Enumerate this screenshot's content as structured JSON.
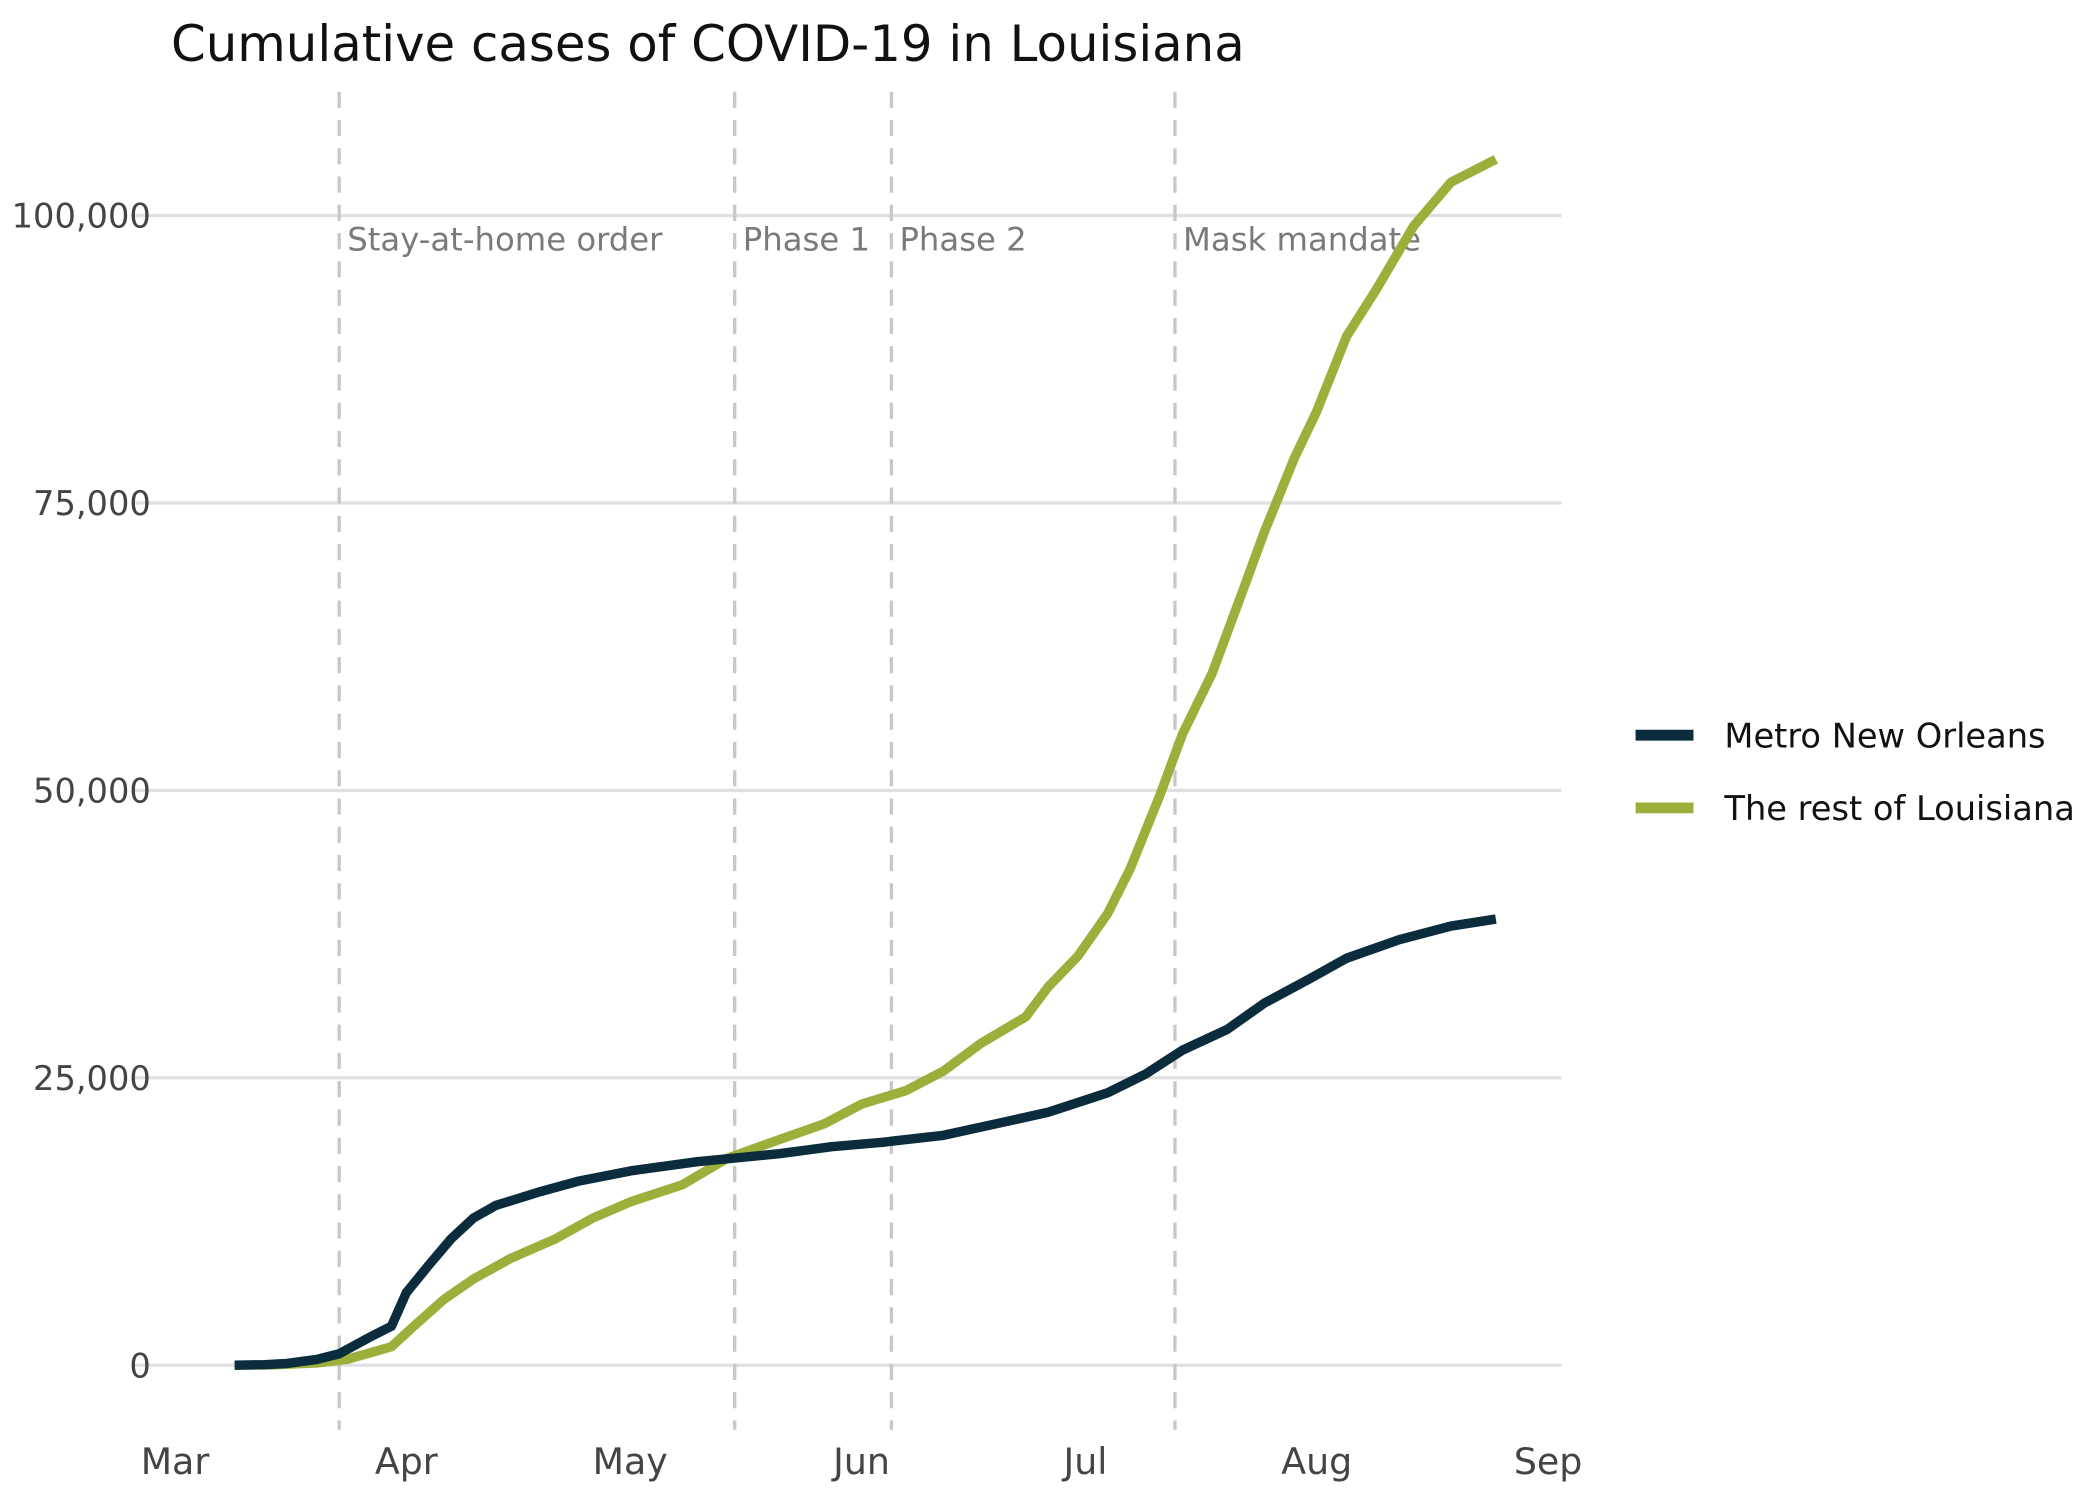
{
  "chart_data": {
    "type": "line",
    "title": "Cumulative cases of COVID-19 in Louisiana",
    "xlabel": "",
    "ylabel": "",
    "x_unit": "date (MM-DD, 2020)",
    "xlim": [
      "02-29",
      "09-03"
    ],
    "ylim": [
      -5500,
      111000
    ],
    "grid": "horizontal",
    "legend_position": "right",
    "x_ticks": [
      {
        "date": "03-01",
        "label": "Mar"
      },
      {
        "date": "04-01",
        "label": "Apr"
      },
      {
        "date": "05-01",
        "label": "May"
      },
      {
        "date": "06-01",
        "label": "Jun"
      },
      {
        "date": "07-01",
        "label": "Jul"
      },
      {
        "date": "08-01",
        "label": "Aug"
      },
      {
        "date": "09-01",
        "label": "Sep"
      }
    ],
    "y_ticks": [
      {
        "value": 0,
        "label": "0"
      },
      {
        "value": 25000,
        "label": "25,000"
      },
      {
        "value": 50000,
        "label": "50,000"
      },
      {
        "value": 75000,
        "label": "75,000"
      },
      {
        "value": 100000,
        "label": "100,000"
      }
    ],
    "annotations": [
      {
        "date": "03-23",
        "label": "Stay-at-home order"
      },
      {
        "date": "05-15",
        "label": "Phase 1"
      },
      {
        "date": "06-05",
        "label": "Phase 2"
      },
      {
        "date": "07-13",
        "label": "Mask mandate"
      }
    ],
    "series": [
      {
        "name": "Metro New Orleans",
        "color": "#0b2c3d",
        "x": [
          "03-09",
          "03-13",
          "03-16",
          "03-20",
          "03-23",
          "03-27",
          "03-30",
          "04-01",
          "04-04",
          "04-07",
          "04-10",
          "04-13",
          "04-19",
          "04-24",
          "05-01",
          "05-10",
          "05-21",
          "05-28",
          "06-04",
          "06-12",
          "06-19",
          "06-26",
          "07-04",
          "07-09",
          "07-14",
          "07-20",
          "07-25",
          "07-31",
          "08-05",
          "08-12",
          "08-19",
          "08-25"
        ],
        "y": [
          0,
          50,
          150,
          500,
          1000,
          2400,
          3400,
          6300,
          8700,
          11000,
          12800,
          13900,
          15100,
          16000,
          16900,
          17700,
          18400,
          19000,
          19400,
          20000,
          21000,
          22000,
          23700,
          25300,
          27400,
          29200,
          31500,
          33600,
          35400,
          37000,
          38200,
          38800
        ]
      },
      {
        "name": "The rest of Louisiana",
        "color": "#9bb03b",
        "x": [
          "03-09",
          "03-14",
          "03-20",
          "03-24",
          "03-30",
          "04-02",
          "04-06",
          "04-10",
          "04-15",
          "04-21",
          "04-26",
          "05-01",
          "05-08",
          "05-14",
          "05-20",
          "05-27",
          "06-01",
          "06-07",
          "06-12",
          "06-17",
          "06-23",
          "06-26",
          "06-30",
          "07-04",
          "07-07",
          "07-11",
          "07-14",
          "07-18",
          "07-22",
          "07-25",
          "07-29",
          "08-01",
          "08-05",
          "08-09",
          "08-14",
          "08-19",
          "08-25"
        ],
        "y": [
          0,
          20,
          200,
          500,
          1600,
          3400,
          5700,
          7500,
          9300,
          11000,
          12800,
          14200,
          15700,
          18000,
          19400,
          21000,
          22700,
          23900,
          25600,
          28000,
          30300,
          32900,
          35600,
          39300,
          43200,
          49600,
          54900,
          60200,
          67200,
          72500,
          78900,
          83000,
          89500,
          93600,
          99100,
          102900,
          104900
        ]
      }
    ]
  }
}
